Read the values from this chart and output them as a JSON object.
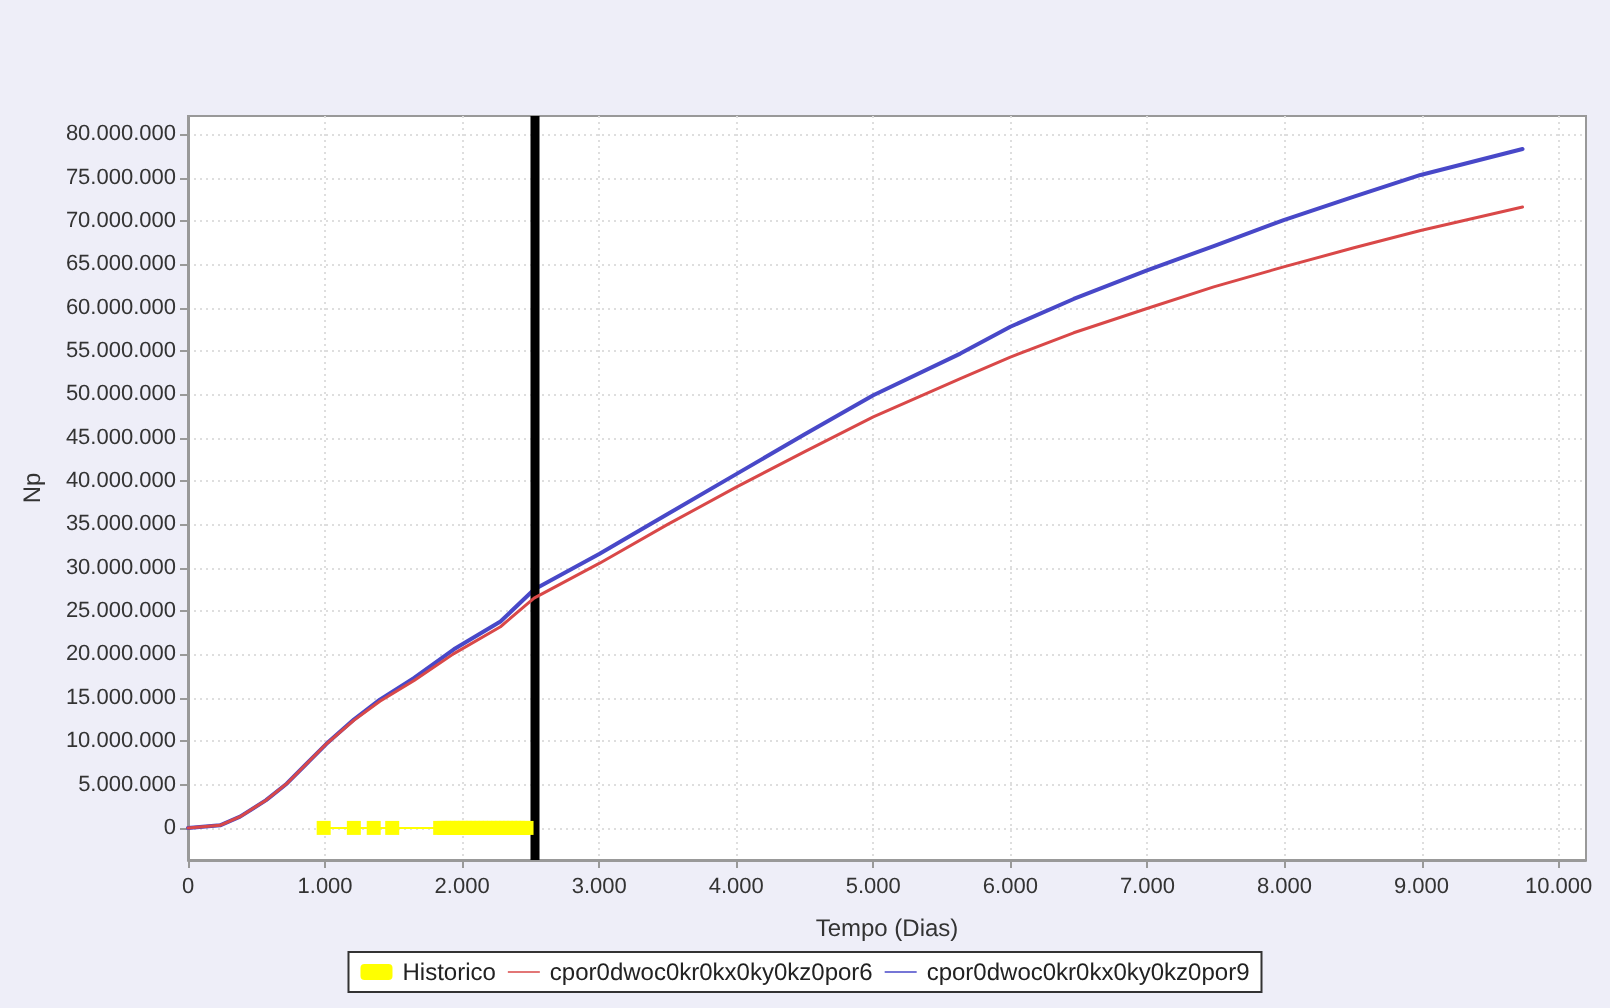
{
  "chart_data": {
    "type": "line",
    "xlabel": "Tempo (Dias)",
    "ylabel": "Np",
    "xlim": [
      0,
      10200
    ],
    "ylim": [
      -3700000,
      82100000
    ],
    "xticks": [
      0,
      {
        "value": 1000,
        "label": "1.000"
      },
      {
        "value": 2000,
        "label": "2.000"
      },
      {
        "value": 3000,
        "label": "3.000"
      },
      {
        "value": 4000,
        "label": "4.000"
      },
      {
        "value": 5000,
        "label": "5.000"
      },
      {
        "value": 6000,
        "label": "6.000"
      },
      {
        "value": 7000,
        "label": "7.000"
      },
      {
        "value": 8000,
        "label": "8.000"
      },
      {
        "value": 9000,
        "label": "9.000"
      },
      {
        "value": 10000,
        "label": "10.000"
      }
    ],
    "yticks": [
      0,
      {
        "value": 5000000,
        "label": "5.000.000"
      },
      {
        "value": 10000000,
        "label": "10.000.000"
      },
      {
        "value": 15000000,
        "label": "15.000.000"
      },
      {
        "value": 20000000,
        "label": "20.000.000"
      },
      {
        "value": 25000000,
        "label": "25.000.000"
      },
      {
        "value": 30000000,
        "label": "30.000.000"
      },
      {
        "value": 35000000,
        "label": "35.000.000"
      },
      {
        "value": 40000000,
        "label": "40.000.000"
      },
      {
        "value": 45000000,
        "label": "45.000.000"
      },
      {
        "value": 50000000,
        "label": "50.000.000"
      },
      {
        "value": 55000000,
        "label": "55.000.000"
      },
      {
        "value": 60000000,
        "label": "60.000.000"
      },
      {
        "value": 65000000,
        "label": "65.000.000"
      },
      {
        "value": 70000000,
        "label": "70.000.000"
      },
      {
        "value": 75000000,
        "label": "75.000.000"
      },
      {
        "value": 80000000,
        "label": "80.000.000"
      }
    ],
    "grid": true,
    "legend": "bottom",
    "marker": "none",
    "ref_lines": [
      {
        "axis": "x",
        "value": 2525,
        "color": "#000000"
      }
    ],
    "series": [
      {
        "name": "Historico",
        "color": "#ffff00",
        "marker": "square",
        "x": [
          990,
          1210,
          1355,
          1490,
          1840,
          1870,
          1900,
          1930,
          1960,
          1990,
          2020,
          2050,
          2080,
          2110,
          2140,
          2170,
          2200,
          2230,
          2260,
          2290,
          2320,
          2350,
          2380,
          2410,
          2440,
          2470
        ],
        "values": [
          0,
          0,
          0,
          0,
          0,
          0,
          0,
          0,
          0,
          0,
          0,
          0,
          0,
          0,
          0,
          0,
          0,
          0,
          0,
          0,
          0,
          0,
          0,
          0,
          0,
          0
        ]
      },
      {
        "name": "cpor0dwoc0kr0kx0ky0kz0por6",
        "color": "#d94848",
        "x": [
          0,
          234,
          380,
          570,
          720,
          865,
          1010,
          1210,
          1400,
          1650,
          1940,
          2280,
          2525,
          3000,
          3500,
          4000,
          4500,
          5000,
          5635,
          6000,
          6462,
          6997,
          7484,
          7994,
          8507,
          8993,
          9737
        ],
        "values": [
          0,
          300000,
          1300000,
          3200000,
          5100000,
          7400000,
          9700000,
          12400000,
          14600000,
          17000000,
          20100000,
          23200000,
          26500000,
          30500000,
          35000000,
          39300000,
          43400000,
          47400000,
          51800000,
          54300000,
          57100000,
          59900000,
          62400000,
          64700000,
          66900000,
          68900000,
          71600000
        ]
      },
      {
        "name": "cpor0dwoc0kr0kx0ky0kz0por9",
        "color": "#4848c8",
        "x": [
          0,
          234,
          380,
          570,
          720,
          865,
          1010,
          1210,
          1400,
          1650,
          1940,
          2280,
          2525,
          3000,
          3500,
          4000,
          4500,
          5000,
          5635,
          6000,
          6462,
          6997,
          7484,
          7994,
          8507,
          8993,
          9737
        ],
        "values": [
          0,
          300000,
          1300000,
          3200000,
          5100000,
          7400000,
          9700000,
          12500000,
          14800000,
          17300000,
          20600000,
          23800000,
          27500000,
          31600000,
          36200000,
          40800000,
          45400000,
          49900000,
          54700000,
          57800000,
          61000000,
          64300000,
          67100000,
          70100000,
          72800000,
          75300000,
          78300000
        ]
      }
    ]
  }
}
